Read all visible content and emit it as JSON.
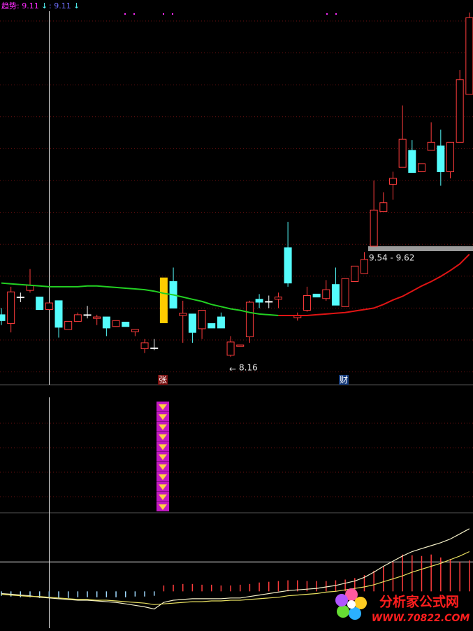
{
  "chart_data": [
    {
      "type": "candlestick",
      "ylim": [
        7.78,
        13.0
      ],
      "up_color": "#ff3c3c",
      "down_color": "#54fcfc",
      "doji_color": "#ffffff",
      "limit_up_color": "#ffcc00",
      "indicator_labels": [
        "趋势: 9.11",
        ": 9.11"
      ],
      "range_label": "9.54 - 9.62",
      "ohlc": [
        [
          8.73,
          8.82,
          8.59,
          8.65
        ],
        [
          8.61,
          9.11,
          8.49,
          9.04
        ],
        [
          8.97,
          9.03,
          8.9,
          8.97
        ],
        [
          9.06,
          9.35,
          9.03,
          9.13
        ],
        [
          8.97,
          8.97,
          8.8,
          8.8
        ],
        [
          8.8,
          8.89,
          8.8,
          8.89
        ],
        [
          8.92,
          8.92,
          8.42,
          8.56
        ],
        [
          8.53,
          8.64,
          8.53,
          8.64
        ],
        [
          8.64,
          8.76,
          8.64,
          8.73
        ],
        [
          8.73,
          8.85,
          8.68,
          8.73
        ],
        [
          8.68,
          8.73,
          8.59,
          8.7
        ],
        [
          8.7,
          8.7,
          8.44,
          8.55
        ],
        [
          8.57,
          8.65,
          8.57,
          8.65
        ],
        [
          8.63,
          8.63,
          8.57,
          8.57
        ],
        [
          8.5,
          8.53,
          8.44,
          8.53
        ],
        [
          8.27,
          8.4,
          8.21,
          8.35
        ],
        [
          8.28,
          8.4,
          8.25,
          8.28
        ],
        [
          8.62,
          9.23,
          8.62,
          9.23
        ],
        [
          9.18,
          9.37,
          8.82,
          8.82
        ],
        [
          8.72,
          8.92,
          8.35,
          8.75
        ],
        [
          8.74,
          8.74,
          8.35,
          8.49
        ],
        [
          8.54,
          8.79,
          8.4,
          8.79
        ],
        [
          8.61,
          8.61,
          8.55,
          8.55
        ],
        [
          8.7,
          8.76,
          8.55,
          8.55
        ],
        [
          8.18,
          8.44,
          8.16,
          8.36
        ],
        [
          8.3,
          8.32,
          8.3,
          8.32
        ],
        [
          8.43,
          8.92,
          8.35,
          8.9
        ],
        [
          8.94,
          9.01,
          8.82,
          8.9
        ],
        [
          8.91,
          8.99,
          8.82,
          8.91
        ],
        [
          8.94,
          9.03,
          8.82,
          8.97
        ],
        [
          9.64,
          9.99,
          9.11,
          9.16
        ],
        [
          8.69,
          8.76,
          8.65,
          8.72
        ],
        [
          8.79,
          9.11,
          8.77,
          8.99
        ],
        [
          9.01,
          9.01,
          8.97,
          8.97
        ],
        [
          8.95,
          9.2,
          8.92,
          9.07
        ],
        [
          9.14,
          9.37,
          8.86,
          8.86
        ],
        [
          8.84,
          9.22,
          8.84,
          9.22
        ],
        [
          9.18,
          9.39,
          9.18,
          9.39
        ],
        [
          9.29,
          9.58,
          9.29,
          9.48
        ],
        [
          9.66,
          10.55,
          9.66,
          10.15
        ],
        [
          10.13,
          10.39,
          10.13,
          10.25
        ],
        [
          10.5,
          10.67,
          10.29,
          10.58
        ],
        [
          10.73,
          11.57,
          10.73,
          11.11
        ],
        [
          10.96,
          11.1,
          10.66,
          10.66
        ],
        [
          10.67,
          10.78,
          10.67,
          10.78
        ],
        [
          10.96,
          11.34,
          10.96,
          11.07
        ],
        [
          11.02,
          11.24,
          10.48,
          10.67
        ],
        [
          10.67,
          11.07,
          10.58,
          11.07
        ],
        [
          11.07,
          12.05,
          11.07,
          11.92
        ],
        [
          11.72,
          12.83,
          11.72,
          12.76
        ]
      ],
      "series": [
        {
          "color": "#22d022",
          "values": [
            9.16,
            9.15,
            9.14,
            9.13,
            9.12,
            9.11,
            9.11,
            9.11,
            9.11,
            9.12,
            9.12,
            9.11,
            9.1,
            9.09,
            9.08,
            9.07,
            9.05,
            9.02,
            9.0,
            8.97,
            8.94,
            8.91,
            8.87,
            8.84,
            8.81,
            8.79,
            8.76,
            8.74,
            8.73,
            8.72,
            null,
            null,
            null,
            null,
            null,
            null,
            null,
            null,
            null,
            null,
            null,
            null,
            null,
            null,
            null,
            null,
            null,
            null,
            null,
            null
          ]
        },
        {
          "color": "#e01414",
          "values": [
            null,
            null,
            null,
            null,
            null,
            null,
            null,
            null,
            null,
            null,
            null,
            null,
            null,
            null,
            null,
            null,
            null,
            null,
            null,
            null,
            null,
            null,
            null,
            null,
            null,
            null,
            null,
            null,
            null,
            8.72,
            8.72,
            8.72,
            8.72,
            8.73,
            8.74,
            8.75,
            8.76,
            8.78,
            8.8,
            8.82,
            8.87,
            8.93,
            8.98,
            9.05,
            9.12,
            9.18,
            9.25,
            9.33,
            9.42,
            9.55
          ]
        }
      ]
    },
    {
      "type": "macd",
      "ylim": [
        -0.05,
        0.1
      ],
      "ref_line": 0.04,
      "pos_color": "#ff3c3c",
      "neg_color": "#9fd8ff",
      "histogram": [
        -0.006,
        -0.007,
        -0.008,
        -0.008,
        -0.009,
        -0.009,
        -0.009,
        -0.009,
        -0.008,
        -0.008,
        -0.008,
        -0.008,
        -0.008,
        -0.008,
        -0.007,
        -0.007,
        -0.006,
        0.008,
        0.009,
        0.01,
        0.01,
        0.009,
        0.009,
        0.008,
        0.008,
        0.009,
        0.01,
        0.012,
        0.013,
        0.014,
        0.015,
        0.015,
        0.014,
        0.014,
        0.014,
        0.015,
        0.016,
        0.018,
        0.022,
        0.028,
        0.034,
        0.04,
        0.05,
        0.049,
        0.048,
        0.05,
        0.046,
        0.044,
        0.04,
        0.042
      ],
      "series": [
        {
          "color": "#f4f0c8",
          "values": [
            -0.003,
            -0.004,
            -0.005,
            -0.006,
            -0.008,
            -0.009,
            -0.01,
            -0.011,
            -0.012,
            -0.012,
            -0.013,
            -0.014,
            -0.015,
            -0.017,
            -0.019,
            -0.021,
            -0.024,
            -0.015,
            -0.012,
            -0.011,
            -0.01,
            -0.01,
            -0.01,
            -0.01,
            -0.009,
            -0.009,
            -0.007,
            -0.005,
            -0.003,
            -0.001,
            0.001,
            0.002,
            0.003,
            0.004,
            0.006,
            0.008,
            0.011,
            0.014,
            0.019,
            0.026,
            0.034,
            0.041,
            0.048,
            0.054,
            0.058,
            0.062,
            0.066,
            0.071,
            0.078,
            0.085
          ]
        },
        {
          "color": "#e8e060",
          "values": [
            -0.004,
            -0.005,
            -0.006,
            -0.007,
            -0.007,
            -0.008,
            -0.009,
            -0.01,
            -0.011,
            -0.011,
            -0.012,
            -0.012,
            -0.013,
            -0.014,
            -0.015,
            -0.016,
            -0.018,
            -0.017,
            -0.016,
            -0.015,
            -0.014,
            -0.014,
            -0.013,
            -0.013,
            -0.012,
            -0.012,
            -0.011,
            -0.01,
            -0.009,
            -0.008,
            -0.006,
            -0.005,
            -0.004,
            -0.003,
            -0.001,
            0.0,
            0.002,
            0.004,
            0.006,
            0.009,
            0.013,
            0.017,
            0.021,
            0.026,
            0.03,
            0.034,
            0.038,
            0.043,
            0.048,
            0.054
          ]
        }
      ]
    }
  ],
  "markers": [
    "张",
    "财"
  ],
  "watermark": {
    "name": "分析家公式网",
    "url": "WWW.70822.COM"
  }
}
